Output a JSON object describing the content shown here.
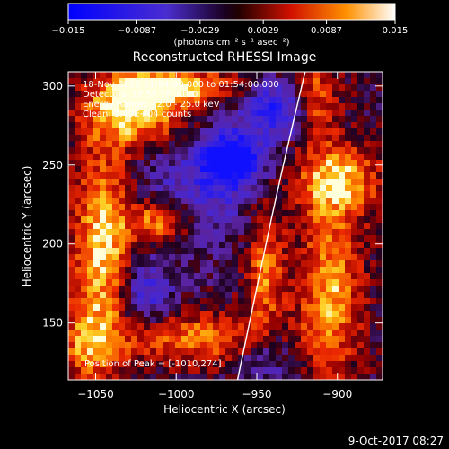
{
  "chart_data": {
    "type": "heatmap",
    "title": "Reconstructed RHESSI Image",
    "xlabel": "Heliocentric X (arcsec)",
    "ylabel": "Heliocentric Y (arcsec)",
    "xlim": [
      -1067,
      -872
    ],
    "ylim": [
      114,
      309
    ],
    "xticks": [
      -1050,
      -1000,
      -950,
      -900
    ],
    "yticks": [
      150,
      200,
      250,
      300
    ],
    "xtick_labels": [
      "−1050",
      "−1000",
      "−950",
      "−900"
    ],
    "ytick_labels": [
      "150",
      "200",
      "250",
      "300"
    ],
    "colorbar": {
      "min": -0.015,
      "max": 0.015,
      "ticks": [
        -0.015,
        -0.0087,
        -0.0029,
        0.0029,
        0.0087,
        0.015
      ],
      "tick_labels": [
        "−0.015",
        "−0.0087",
        "−0.0029",
        "0.0029",
        "0.0087",
        "0.015"
      ],
      "units": "(photons cm⁻² s⁻¹ asec⁻²)"
    },
    "annotations": [
      "18-Nov-2015 01:54:00.000 to 01:54:00.000",
      "Detectors: 1F 5F 7F, Att 0",
      "Energy Range: 12.0 - 25.0 keV",
      "Clean: 1.49E+04 counts",
      "Position of Peak = [-1010,274]"
    ],
    "limb_curve": {
      "x": [
        -962,
        -955,
        -948,
        -941,
        -934,
        -927,
        -920
      ],
      "y": [
        114,
        148,
        182,
        216,
        248,
        279,
        309
      ]
    },
    "footer": "9-Oct-2017 08:27",
    "colors": {
      "neg": "#1010ff",
      "mid_neg": "#5a1fa0",
      "zero": "#140014",
      "mid_pos": "#e02000",
      "pos": "#ffd000",
      "max": "#ffffff"
    }
  }
}
